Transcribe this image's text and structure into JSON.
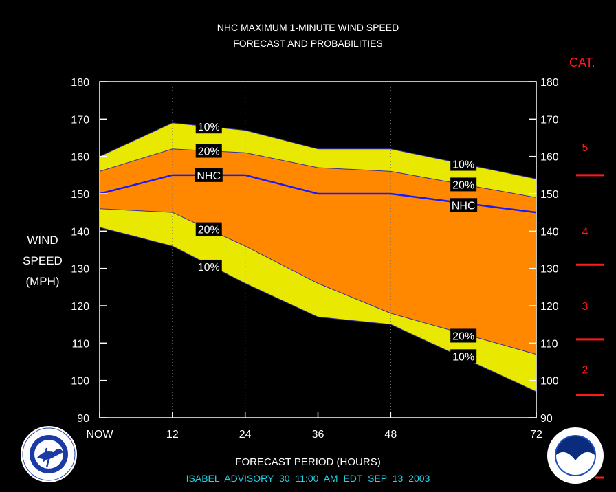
{
  "title_line1": "NHC MAXIMUM 1-MINUTE WIND SPEED",
  "title_line2": "FORECAST AND PROBABILITIES",
  "ylabel_lines": [
    "WIND",
    "SPEED",
    "(MPH)"
  ],
  "xlabel": "FORECAST PERIOD (HOURS)",
  "advisory": "ISABEL   ADVISORY  30 11:00  AM  EDT  SEP  13  2003",
  "category_title": "CAT.",
  "colors": {
    "band10": "#e8e800",
    "band20": "#ff8800",
    "nhc": "#1a1aff",
    "category": "#ff1a1a",
    "advisory": "#22d3e6"
  },
  "chart_data": {
    "type": "area",
    "x": [
      0,
      12,
      24,
      36,
      48,
      72
    ],
    "x_tick_labels": [
      "NOW",
      "12",
      "24",
      "36",
      "48",
      "72"
    ],
    "ylim": [
      90,
      180
    ],
    "y_ticks": [
      90,
      100,
      110,
      120,
      130,
      140,
      150,
      160,
      170,
      180
    ],
    "grid": "dotted vertical lines at 12, 24, 36, 48",
    "series": [
      {
        "name": "10%",
        "role": "upper",
        "values": [
          160,
          169,
          167,
          162,
          162,
          154
        ]
      },
      {
        "name": "20%",
        "role": "upper",
        "values": [
          156,
          162,
          161,
          157,
          156,
          149
        ]
      },
      {
        "name": "NHC",
        "role": "forecast",
        "values": [
          150,
          155,
          155,
          150,
          150,
          145
        ]
      },
      {
        "name": "20%",
        "role": "lower",
        "values": [
          146,
          145,
          136,
          126,
          118,
          107
        ]
      },
      {
        "name": "10%",
        "role": "lower",
        "values": [
          141,
          136,
          126,
          117,
          115,
          97
        ]
      }
    ],
    "annotations": [
      {
        "text": "10%",
        "x": 18,
        "y": 168
      },
      {
        "text": "20%",
        "x": 18,
        "y": 161.5
      },
      {
        "text": "NHC",
        "x": 18,
        "y": 155
      },
      {
        "text": "20%",
        "x": 18,
        "y": 140.5
      },
      {
        "text": "10%",
        "x": 18,
        "y": 130.5
      },
      {
        "text": "10%",
        "x": 60,
        "y": 158
      },
      {
        "text": "20%",
        "x": 60,
        "y": 152.5
      },
      {
        "text": "NHC",
        "x": 60,
        "y": 147
      },
      {
        "text": "20%",
        "x": 60,
        "y": 112
      },
      {
        "text": "10%",
        "x": 60,
        "y": 106.5
      }
    ],
    "categories": [
      {
        "label": "5",
        "y": 162.5
      },
      {
        "label": "4",
        "y": 140
      },
      {
        "label": "3",
        "y": 120
      },
      {
        "label": "2",
        "y": 103
      }
    ],
    "category_boundaries": [
      155,
      131,
      111,
      96
    ]
  },
  "logos": {
    "left": "national-weather-service-logo",
    "right": "noaa-logo"
  }
}
